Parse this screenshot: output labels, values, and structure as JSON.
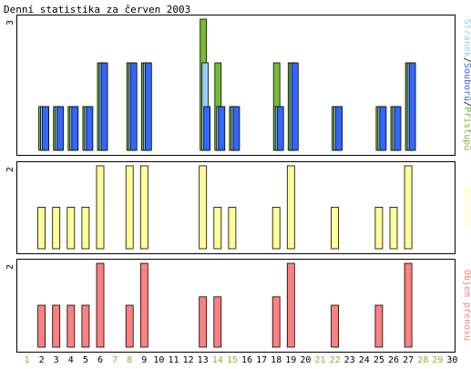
{
  "chart_data": {
    "type": "bar",
    "title": "Denní statistika za červen 2003",
    "days": [
      "1",
      "2",
      "3",
      "4",
      "5",
      "6",
      "7",
      "8",
      "9",
      "10",
      "11",
      "12",
      "13",
      "14",
      "15",
      "16",
      "17",
      "18",
      "19",
      "20",
      "21",
      "22",
      "23",
      "24",
      "25",
      "26",
      "27",
      "28",
      "29",
      "30"
    ],
    "weekend_days": [
      1,
      7,
      8,
      14,
      15,
      21,
      22,
      28,
      29
    ],
    "colors": {
      "hits": "#77bb33",
      "files": "#99ccff",
      "pages": "#3366ff",
      "visits": "#ffff99",
      "kbytes": "#ff8080",
      "weekday_label": "#000000",
      "weekend_label": "#77bb33",
      "frame": "#000000",
      "background": "#ffffff"
    },
    "panels": [
      {
        "id": "hits",
        "ymax_label": "3",
        "ymax": 3,
        "legend": [
          {
            "text": "Stránek",
            "color": "#99ccff"
          },
          {
            "text": "/",
            "color": "#000000"
          },
          {
            "text": "Souborů",
            "color": "#3366ff"
          },
          {
            "text": "/",
            "color": "#000000"
          },
          {
            "text": "Přístupů",
            "color": "#77bb33"
          }
        ],
        "series": [
          {
            "name": "Přístupů",
            "key": "hits",
            "values": [
              0,
              1,
              1,
              1,
              1,
              2,
              0,
              2,
              2,
              0,
              0,
              0,
              3,
              2,
              1,
              0,
              0,
              2,
              2,
              0,
              0,
              1,
              0,
              0,
              1,
              1,
              2,
              0,
              0,
              0
            ]
          },
          {
            "name": "Souborů",
            "key": "files",
            "values": [
              0,
              1,
              1,
              1,
              1,
              2,
              0,
              2,
              2,
              0,
              0,
              0,
              2,
              1,
              1,
              0,
              0,
              1,
              2,
              0,
              0,
              1,
              0,
              0,
              1,
              1,
              2,
              0,
              0,
              0
            ]
          },
          {
            "name": "Stránek",
            "key": "pages",
            "values": [
              0,
              1,
              1,
              1,
              1,
              2,
              0,
              2,
              2,
              0,
              0,
              0,
              1,
              1,
              1,
              0,
              0,
              1,
              2,
              0,
              0,
              1,
              0,
              0,
              1,
              1,
              2,
              0,
              0,
              0
            ]
          }
        ]
      },
      {
        "id": "visits",
        "ymax_label": "2",
        "ymax": 2,
        "legend": [
          {
            "text": "Návštěv",
            "color": "#ffff99"
          }
        ],
        "series": [
          {
            "name": "Návštěv",
            "key": "visits",
            "values": [
              0,
              1,
              1,
              1,
              1,
              2,
              0,
              2,
              2,
              0,
              0,
              0,
              2,
              1,
              1,
              0,
              0,
              1,
              2,
              0,
              0,
              1,
              0,
              0,
              1,
              1,
              2,
              0,
              0,
              0
            ]
          }
        ]
      },
      {
        "id": "kbytes",
        "ymax_label": "2",
        "ymax": 2,
        "legend": [
          {
            "text": "Objem přenosu",
            "color": "#ff8080"
          }
        ],
        "series": [
          {
            "name": "Objem přenosu",
            "key": "kbytes",
            "values": [
              0,
              1,
              1,
              1,
              1,
              2,
              0,
              1,
              2,
              0,
              0,
              0,
              1.2,
              1.2,
              0,
              0,
              0,
              1.2,
              2,
              0,
              0,
              1,
              0,
              0,
              1,
              0,
              2,
              0,
              0,
              0
            ]
          }
        ]
      }
    ]
  }
}
